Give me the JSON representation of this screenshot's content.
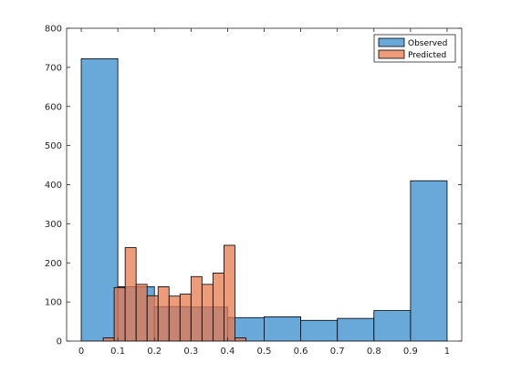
{
  "chart_data": {
    "type": "bar",
    "title": "",
    "xlabel": "",
    "ylabel": "",
    "xlim": [
      -0.04,
      1.04
    ],
    "ylim": [
      0,
      800
    ],
    "xticks": [
      0,
      0.1,
      0.2,
      0.3,
      0.4,
      0.5,
      0.6,
      0.7,
      0.8,
      0.9,
      1
    ],
    "xtick_labels": [
      "0",
      "0.1",
      "0.2",
      "0.3",
      "0.4",
      "0.5",
      "0.6",
      "0.7",
      "0.8",
      "0.9",
      "1"
    ],
    "yticks": [
      0,
      100,
      200,
      300,
      400,
      500,
      600,
      700,
      800
    ],
    "ytick_labels": [
      "0",
      "100",
      "200",
      "300",
      "400",
      "500",
      "600",
      "700",
      "800"
    ],
    "grid": false,
    "legend_position": "top-right",
    "series": [
      {
        "name": "Observed",
        "color": "#4393cf",
        "opacity": 0.8,
        "bin_edges": [
          0,
          0.1,
          0.2,
          0.3,
          0.4,
          0.5,
          0.6,
          0.7,
          0.8,
          0.9,
          1.0
        ],
        "counts": [
          722,
          139,
          88,
          87,
          60,
          62,
          53,
          58,
          78,
          410
        ]
      },
      {
        "name": "Predicted",
        "color": "#e67a4f",
        "opacity": 0.75,
        "bin_edges": [
          0.06,
          0.09,
          0.12,
          0.15,
          0.18,
          0.21,
          0.24,
          0.27,
          0.3,
          0.33,
          0.36,
          0.39,
          0.42,
          0.45
        ],
        "counts": [
          8,
          137,
          239,
          145,
          116,
          139,
          115,
          120,
          165,
          145,
          174,
          245,
          8
        ]
      }
    ]
  }
}
